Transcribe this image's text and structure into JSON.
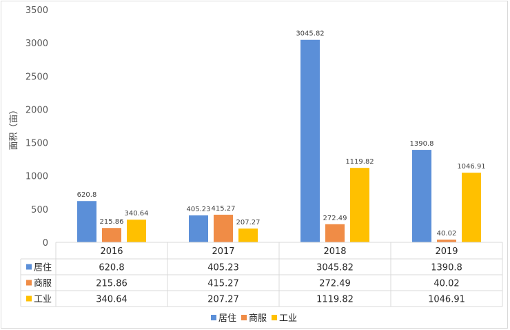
{
  "chart_data": {
    "type": "bar",
    "title": "",
    "ylabel": "面积（亩）",
    "xlabel": "",
    "ylim": [
      0,
      3500
    ],
    "yticks": [
      0,
      500,
      1000,
      1500,
      2000,
      2500,
      3000,
      3500
    ],
    "grid": false,
    "legend_position": "bottom",
    "data_table": true,
    "categories": [
      "2016",
      "2017",
      "2018",
      "2019"
    ],
    "series": [
      {
        "name": "居住",
        "color": "#5b8fd8",
        "values": [
          620.8,
          405.23,
          3045.82,
          1390.8
        ],
        "labels": [
          "620.8",
          "405.23",
          "3045.82",
          "1390.8"
        ]
      },
      {
        "name": "商服",
        "color": "#f08c46",
        "values": [
          215.86,
          415.27,
          272.49,
          40.02
        ],
        "labels": [
          "215.86",
          "415.27",
          "272.49",
          "40.02"
        ]
      },
      {
        "name": "工业",
        "color": "#ffc000",
        "values": [
          340.64,
          207.27,
          1119.82,
          1046.91
        ],
        "labels": [
          "340.64",
          "207.27",
          "1119.82",
          "1046.91"
        ]
      }
    ]
  }
}
